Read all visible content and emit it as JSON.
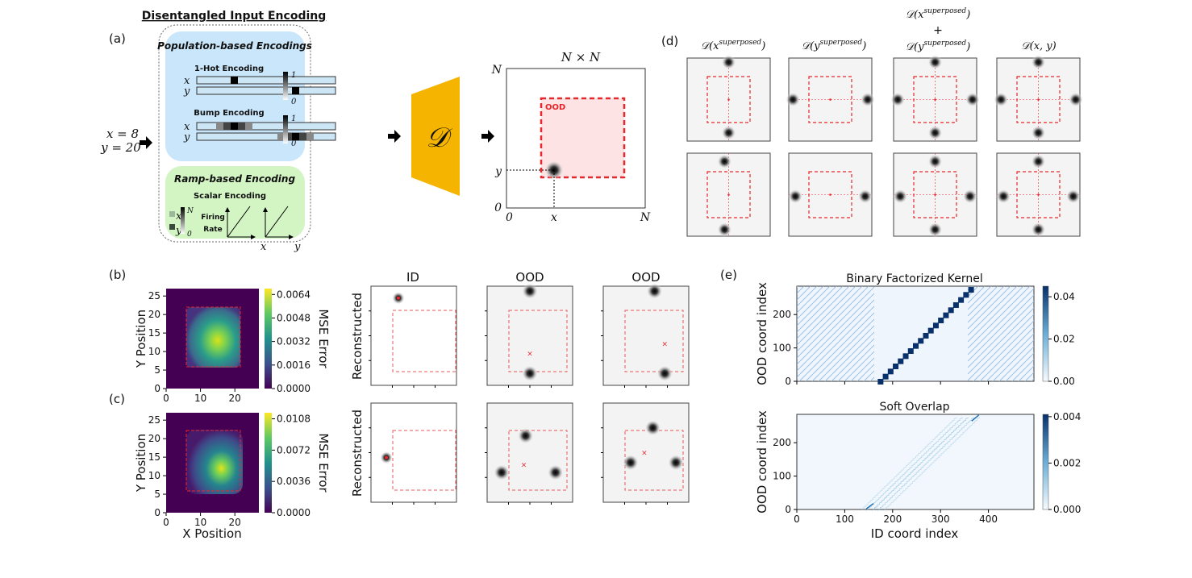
{
  "panel_a": {
    "label": "(a)",
    "title": "Disentangled Input Encoding",
    "input_x": "x = 8",
    "input_y": "y = 20",
    "population_title": "Population-based Encodings",
    "onehot_title": "1-Hot Encoding",
    "bump_title": "Bump Encoding",
    "ramp_title": "Ramp-based Encoding",
    "scalar_title": "Scalar Encoding",
    "firing_rate_line1": "Firing",
    "firing_rate_line2": "Rate",
    "var_x": "x",
    "var_y": "y",
    "scale_max": "1",
    "scale_min": "0",
    "scalar_max": "N",
    "scalar_min": "0",
    "decoder_symbol": "𝒟",
    "output_title": "N × N",
    "axis_n": "N",
    "axis_zero": "0",
    "ood_label": "OOD",
    "colors": {
      "population_bg": "#c9e6fb",
      "ramp_bg": "#d3f5c4",
      "decoder": "#f5b400",
      "ood": "#e8262b",
      "ood_fill": "#fde3e3"
    }
  },
  "panel_d": {
    "label": "(d)",
    "columns": [
      {
        "pre": "𝒟(x",
        "sup": "superposed",
        "post": ")"
      },
      {
        "pre": "𝒟(y",
        "sup": "superposed",
        "post": ")"
      },
      {
        "line1_pre": "𝒟(x",
        "line1_sup": "superposed",
        "line1_post": ")",
        "plus": "+",
        "line2_pre": "𝒟(y",
        "line2_sup": "superposed",
        "line2_post": ")"
      },
      {
        "pre": "𝒟(x, y)"
      }
    ]
  },
  "panel_b": {
    "label": "(b)",
    "ylabel": "Y Position",
    "cbar_label": "MSE Error",
    "xticks": [
      "0",
      "10",
      "20"
    ],
    "yticks": [
      "0",
      "5",
      "10",
      "15",
      "20",
      "25"
    ],
    "cbar_ticks": [
      "0.0000",
      "0.0016",
      "0.0032",
      "0.0048",
      "0.0064"
    ]
  },
  "panel_c": {
    "label": "(c)",
    "ylabel": "Y Position",
    "xlabel": "X Position",
    "cbar_label": "MSE Error",
    "xticks": [
      "0",
      "10",
      "20"
    ],
    "yticks": [
      "0",
      "5",
      "10",
      "15",
      "20",
      "25"
    ],
    "cbar_ticks": [
      "0.0000",
      "0.0036",
      "0.0072",
      "0.0108"
    ]
  },
  "recon_grid": {
    "column_titles": [
      "ID",
      "OOD",
      "OOD"
    ],
    "row_label": "Reconstructed"
  },
  "panel_e": {
    "label": "(e)",
    "top_title": "Binary Factorized Kernel",
    "bottom_title": "Soft Overlap",
    "ylabel": "OOD coord index",
    "xlabel": "ID coord index",
    "xticks": [
      "0",
      "100",
      "200",
      "300",
      "400"
    ],
    "yticks": [
      "0",
      "100",
      "200"
    ],
    "top_cbar_ticks": [
      "0.00",
      "0.02",
      "0.04"
    ],
    "bottom_cbar_ticks": [
      "0.000",
      "0.002",
      "0.004"
    ]
  },
  "chart_data": [
    {
      "type": "heatmap",
      "panel": "b",
      "xlabel": "",
      "ylabel": "Y Position",
      "xlim": [
        0,
        27
      ],
      "ylim": [
        0,
        27
      ],
      "colorbar": "MSE Error",
      "clim": [
        0,
        0.0068
      ],
      "ood_region": [
        6,
        22,
        6,
        22
      ],
      "colormap": "viridis"
    },
    {
      "type": "heatmap",
      "panel": "c",
      "xlabel": "X Position",
      "ylabel": "Y Position",
      "xlim": [
        0,
        27
      ],
      "ylim": [
        0,
        27
      ],
      "colorbar": "MSE Error",
      "clim": [
        0,
        0.0115
      ],
      "ood_region": [
        6,
        22,
        6,
        22
      ],
      "colormap": "viridis"
    },
    {
      "type": "heatmap",
      "panel": "e-top",
      "title": "Binary Factorized Kernel",
      "xlabel": "",
      "ylabel": "OOD coord index",
      "xlim": [
        0,
        495
      ],
      "ylim": [
        0,
        285
      ],
      "clim": [
        0,
        0.045
      ],
      "colormap": "Blues"
    },
    {
      "type": "heatmap",
      "panel": "e-bottom",
      "title": "Soft Overlap",
      "xlabel": "ID coord index",
      "ylabel": "OOD coord index",
      "xlim": [
        0,
        495
      ],
      "ylim": [
        0,
        285
      ],
      "clim": [
        0,
        0.0041
      ],
      "colormap": "Blues"
    }
  ]
}
